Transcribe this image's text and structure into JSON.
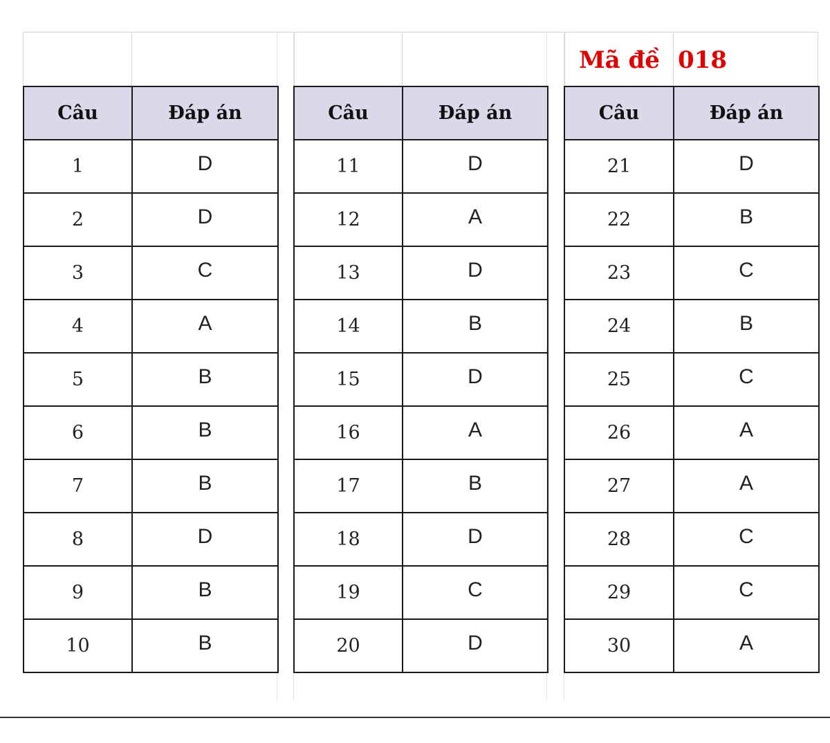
{
  "exam_code": {
    "label": "Mã đề",
    "value": "018"
  },
  "header": {
    "question_label": "Câu",
    "answer_label": "Đáp án"
  },
  "answer_columns": [
    {
      "rows": [
        {
          "q": "1",
          "a": "D"
        },
        {
          "q": "2",
          "a": "D"
        },
        {
          "q": "3",
          "a": "C"
        },
        {
          "q": "4",
          "a": "A"
        },
        {
          "q": "5",
          "a": "B"
        },
        {
          "q": "6",
          "a": "B"
        },
        {
          "q": "7",
          "a": "B"
        },
        {
          "q": "8",
          "a": "D"
        },
        {
          "q": "9",
          "a": "B"
        },
        {
          "q": "10",
          "a": "B"
        }
      ]
    },
    {
      "rows": [
        {
          "q": "11",
          "a": "D"
        },
        {
          "q": "12",
          "a": "A"
        },
        {
          "q": "13",
          "a": "D"
        },
        {
          "q": "14",
          "a": "B"
        },
        {
          "q": "15",
          "a": "D"
        },
        {
          "q": "16",
          "a": "A"
        },
        {
          "q": "17",
          "a": "B"
        },
        {
          "q": "18",
          "a": "D"
        },
        {
          "q": "19",
          "a": "C"
        },
        {
          "q": "20",
          "a": "D"
        }
      ]
    },
    {
      "rows": [
        {
          "q": "21",
          "a": "D"
        },
        {
          "q": "22",
          "a": "B"
        },
        {
          "q": "23",
          "a": "C"
        },
        {
          "q": "24",
          "a": "B"
        },
        {
          "q": "25",
          "a": "C"
        },
        {
          "q": "26",
          "a": "A"
        },
        {
          "q": "27",
          "a": "A"
        },
        {
          "q": "28",
          "a": "C"
        },
        {
          "q": "29",
          "a": "C"
        },
        {
          "q": "30",
          "a": "A"
        }
      ]
    }
  ],
  "colors": {
    "header_fill": "#d9d9ea",
    "code_text": "#e00000",
    "border": "#1a1a1a"
  }
}
